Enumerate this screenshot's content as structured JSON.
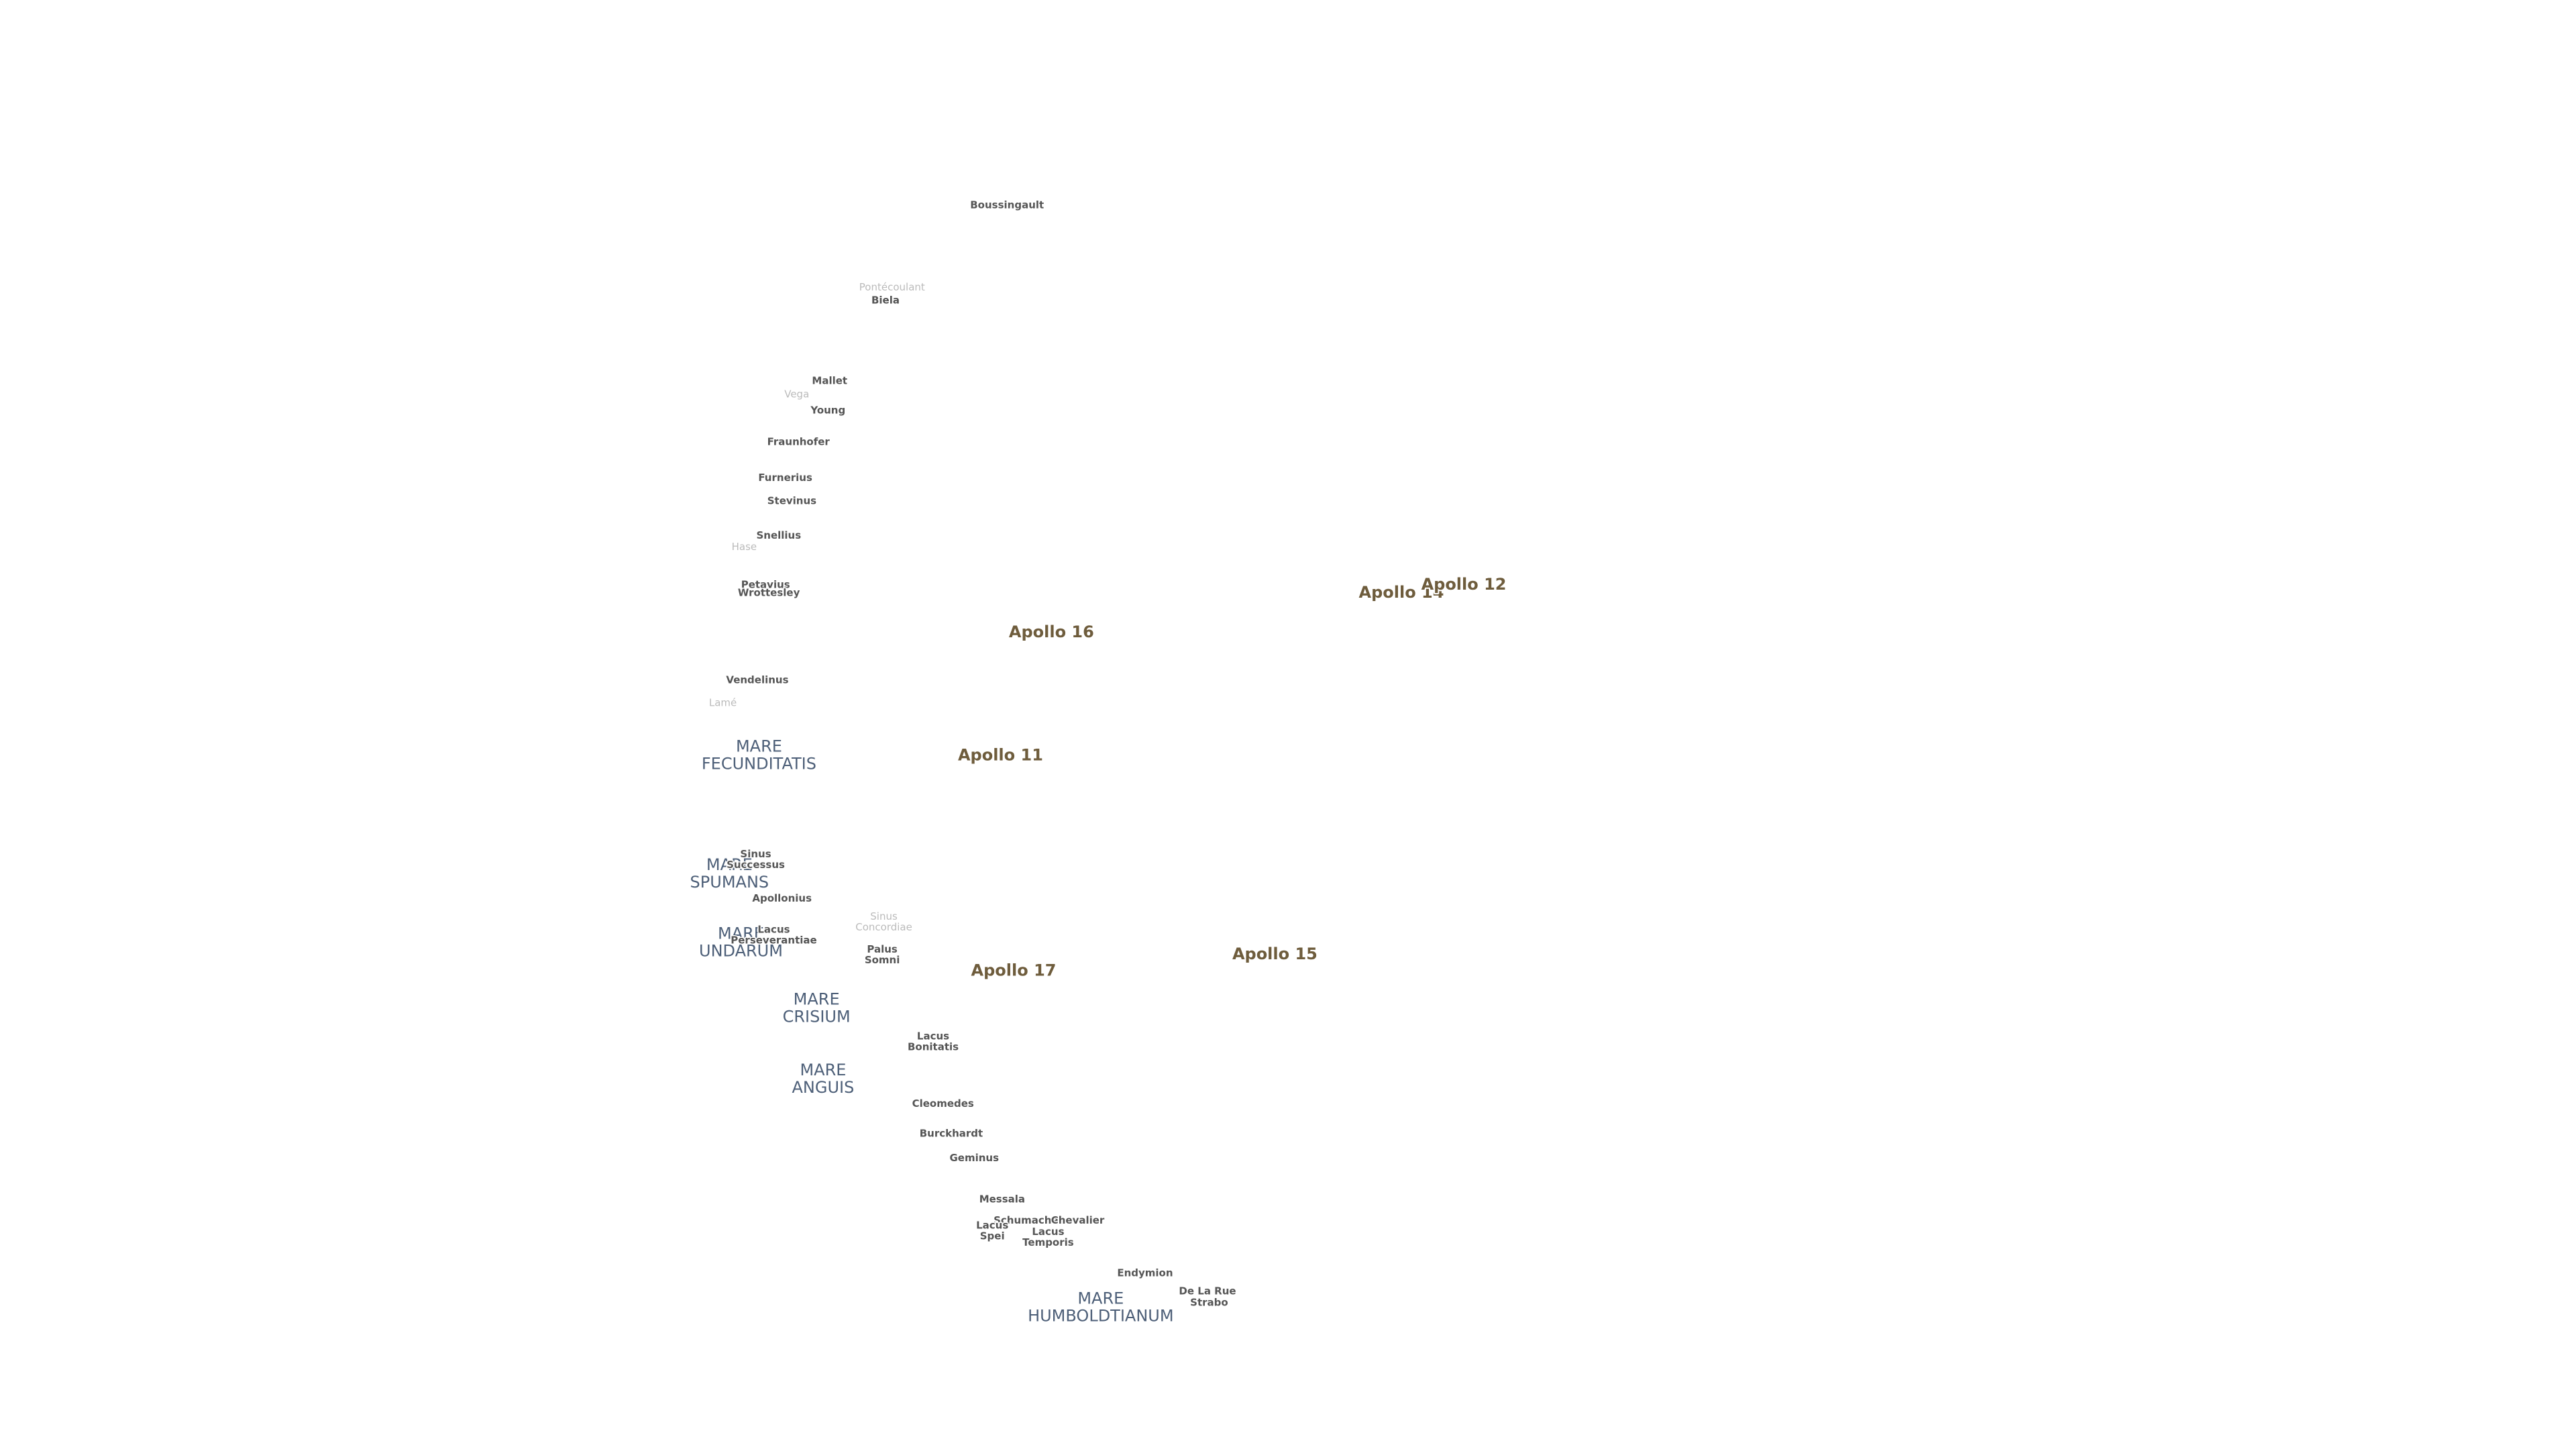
{
  "map": {
    "landing_sites": [
      "Apollo 16",
      "Apollo 11",
      "Apollo 17",
      "Apollo 15",
      "Apollo 14",
      "Apollo 12"
    ],
    "maria": [
      "MARE FECUNDITATIS",
      "MARE CRISIUM",
      "MARE UNDARUM",
      "MARE SPUMANS",
      "MARE ANGUIS",
      "MARE HUMBOLDTIANUM"
    ],
    "features": [
      "Boussingault",
      "Biela",
      "Mallet",
      "Young",
      "Fraunhofer",
      "Furnerius",
      "Stevinus",
      "Snellius",
      "Petavius",
      "Wrottesley",
      "Vendelinus",
      "Sinus Successus",
      "Apollonius",
      "Lacus Perseverantiae",
      "Palus Somni",
      "Lacus Bonitatis",
      "Cleomedes",
      "Burckhardt",
      "Geminus",
      "Messala",
      "Schumacher",
      "Chevalier",
      "Lacus Temporis",
      "Lacus Spei",
      "Endymion",
      "De La Rue",
      "Strabo"
    ],
    "faint_features": [
      "Pontécoulant",
      "Vega",
      "Hase",
      "Lamé",
      "Sinus Concordiae"
    ]
  }
}
